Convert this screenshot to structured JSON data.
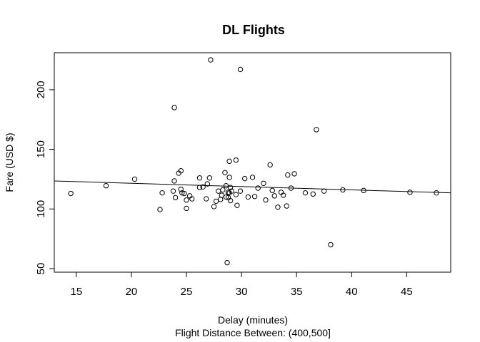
{
  "chart_data": {
    "type": "scatter",
    "title": "DL Flights",
    "xlabel": "Delay (minutes)",
    "subtitle": "Flight Distance Between:  (400,500]",
    "ylabel": "Fare (USD $)",
    "xlim": [
      13,
      49
    ],
    "ylim": [
      47,
      231
    ],
    "xticks": [
      15,
      20,
      25,
      30,
      35,
      40,
      45
    ],
    "yticks": [
      50,
      100,
      150,
      200
    ],
    "grid": false,
    "regression_line": {
      "x": [
        13,
        49
      ],
      "y": [
        123.5,
        113.5
      ]
    },
    "points": [
      [
        14.5,
        113
      ],
      [
        17.7,
        119.5
      ],
      [
        20.3,
        125
      ],
      [
        22.6,
        99.5
      ],
      [
        22.8,
        113.5
      ],
      [
        23.9,
        185
      ],
      [
        23.8,
        115
      ],
      [
        23.9,
        123.5
      ],
      [
        24.0,
        109.5
      ],
      [
        24.3,
        130
      ],
      [
        24.5,
        132
      ],
      [
        24.5,
        116.5
      ],
      [
        24.6,
        113.5
      ],
      [
        24.8,
        113
      ],
      [
        25.0,
        107.5
      ],
      [
        25.0,
        100.5
      ],
      [
        25.3,
        111
      ],
      [
        25.5,
        108.5
      ],
      [
        26.2,
        126
      ],
      [
        26.2,
        118
      ],
      [
        26.5,
        118.5
      ],
      [
        26.8,
        108.5
      ],
      [
        26.9,
        121
      ],
      [
        27.1,
        126
      ],
      [
        27.2,
        225
      ],
      [
        27.5,
        102
      ],
      [
        27.7,
        106.5
      ],
      [
        27.9,
        115
      ],
      [
        28.1,
        108
      ],
      [
        28.2,
        111.5
      ],
      [
        28.3,
        116
      ],
      [
        28.5,
        130.5
      ],
      [
        28.6,
        110
      ],
      [
        28.6,
        119.5
      ],
      [
        28.7,
        55
      ],
      [
        28.8,
        114
      ],
      [
        28.8,
        109.5
      ],
      [
        28.9,
        140
      ],
      [
        28.9,
        126.5
      ],
      [
        28.9,
        113.5
      ],
      [
        29.0,
        118
      ],
      [
        29.0,
        107
      ],
      [
        29.1,
        115
      ],
      [
        29.5,
        141
      ],
      [
        29.5,
        112
      ],
      [
        29.6,
        103
      ],
      [
        29.9,
        217
      ],
      [
        29.9,
        115
      ],
      [
        30.3,
        125.5
      ],
      [
        30.6,
        110
      ],
      [
        31.0,
        126.5
      ],
      [
        31.2,
        110.5
      ],
      [
        31.5,
        117.5
      ],
      [
        32.0,
        121.5
      ],
      [
        32.2,
        107.5
      ],
      [
        32.6,
        137
      ],
      [
        32.8,
        115.5
      ],
      [
        33.0,
        111
      ],
      [
        33.3,
        101.5
      ],
      [
        33.6,
        114
      ],
      [
        33.8,
        111.5
      ],
      [
        34.1,
        102.5
      ],
      [
        34.2,
        128.5
      ],
      [
        34.5,
        117.5
      ],
      [
        34.8,
        129.5
      ],
      [
        35.8,
        113.5
      ],
      [
        36.5,
        112.5
      ],
      [
        36.8,
        166.5
      ],
      [
        37.5,
        115
      ],
      [
        38.1,
        70
      ],
      [
        39.2,
        116
      ],
      [
        41.1,
        115.5
      ],
      [
        45.3,
        114
      ],
      [
        47.7,
        113.5
      ]
    ]
  }
}
